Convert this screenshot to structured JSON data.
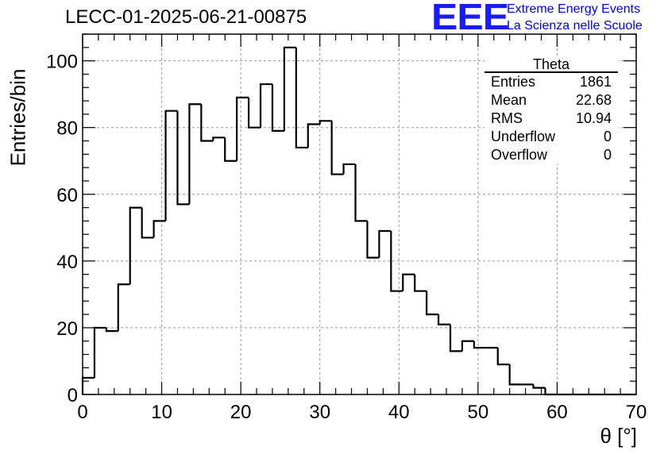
{
  "chart_data": {
    "type": "bar",
    "title": "LECC-01-2025-06-21-00875",
    "xlabel": "θ [°]",
    "ylabel": "Entries/bin",
    "xlim": [
      0,
      70
    ],
    "ylim": [
      0,
      108
    ],
    "bin_width": 1.5,
    "x_ticks": [
      0,
      10,
      20,
      30,
      40,
      50,
      60,
      70
    ],
    "y_ticks": [
      0,
      20,
      40,
      60,
      80,
      100
    ],
    "grid": true,
    "series": [
      {
        "values": [
          5,
          20,
          19,
          33,
          56,
          47,
          52,
          85,
          57,
          87,
          76,
          77,
          70,
          89,
          80,
          93,
          79,
          104,
          74,
          81,
          82,
          66,
          69,
          52,
          41,
          49,
          31,
          36,
          31,
          24,
          21,
          13,
          16,
          14,
          14,
          9,
          3,
          3,
          2,
          0,
          0,
          0,
          0,
          0,
          0,
          0,
          0
        ]
      }
    ],
    "stats_box": {
      "title": "Theta",
      "rows": [
        {
          "label": "Entries",
          "value": "1861"
        },
        {
          "label": "Mean",
          "value": "22.68"
        },
        {
          "label": "RMS",
          "value": "10.94"
        },
        {
          "label": "Underflow",
          "value": "0"
        },
        {
          "label": "Overflow",
          "value": "0"
        }
      ]
    }
  },
  "logo": {
    "mark": "EEE",
    "line1": "Extreme Energy Events",
    "line2": "La Scienza nelle Scuole",
    "color": "#1a1aff"
  },
  "colors": {
    "histogram": "#000000",
    "grid": "#999999",
    "axis": "#000000"
  }
}
